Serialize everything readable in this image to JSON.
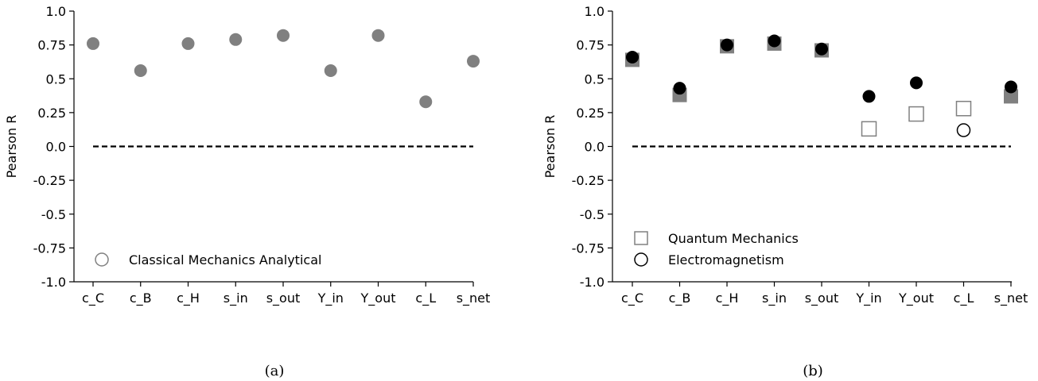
{
  "chart_data": [
    {
      "type": "scatter",
      "panel_label": "(a)",
      "ylabel": "Pearson R",
      "ylim": [
        -1.0,
        1.0
      ],
      "yticks": [
        "-1.0",
        "-0.75",
        "-0.5",
        "-0.25",
        "0.0",
        "0.25",
        "0.5",
        "0.75",
        "1.0"
      ],
      "ytick_values": [
        -1.0,
        -0.75,
        -0.5,
        -0.25,
        0.0,
        0.25,
        0.5,
        0.75,
        1.0
      ],
      "categories": [
        "c_C",
        "c_B",
        "c_H",
        "s_in",
        "s_out",
        "Y_in",
        "Y_out",
        "c_L",
        "s_net"
      ],
      "reference_line": 0.0,
      "legend_position": "lower-left",
      "series": [
        {
          "name": "Classical Mechanics Analytical",
          "marker": "circle",
          "fill": "#808080",
          "stroke": "#808080",
          "size": 8,
          "legend_marker": "open-circle",
          "values": [
            0.76,
            0.56,
            0.76,
            0.79,
            0.82,
            0.56,
            0.82,
            0.33,
            0.63
          ]
        }
      ]
    },
    {
      "type": "scatter",
      "panel_label": "(b)",
      "ylabel": "Pearson R",
      "ylim": [
        -1.0,
        1.0
      ],
      "yticks": [
        "-1.0",
        "-0.75",
        "-0.5",
        "-0.25",
        "0.0",
        "0.25",
        "0.5",
        "0.75",
        "1.0"
      ],
      "ytick_values": [
        -1.0,
        -0.75,
        -0.5,
        -0.25,
        0.0,
        0.25,
        0.5,
        0.75,
        1.0
      ],
      "categories": [
        "c_C",
        "c_B",
        "c_H",
        "s_in",
        "s_out",
        "Y_in",
        "Y_out",
        "c_L",
        "s_net"
      ],
      "reference_line": 0.0,
      "legend_position": "lower-left",
      "series": [
        {
          "name": "Quantum Mechanics",
          "marker": "square",
          "fill": "#808080",
          "stroke": "#808080",
          "size": 9,
          "legend_marker": "open-square",
          "values": [
            0.64,
            0.38,
            0.74,
            0.76,
            0.71,
            0.13,
            0.24,
            0.28,
            0.37
          ],
          "open_points": [
            5,
            6,
            7
          ]
        },
        {
          "name": "Electromagnetism",
          "marker": "circle",
          "fill": "#000000",
          "stroke": "#000000",
          "size": 8,
          "legend_marker": "open-circle",
          "values": [
            0.66,
            0.43,
            0.75,
            0.78,
            0.72,
            0.37,
            0.47,
            0.12,
            0.44
          ],
          "open_points": [
            7
          ]
        }
      ]
    }
  ]
}
